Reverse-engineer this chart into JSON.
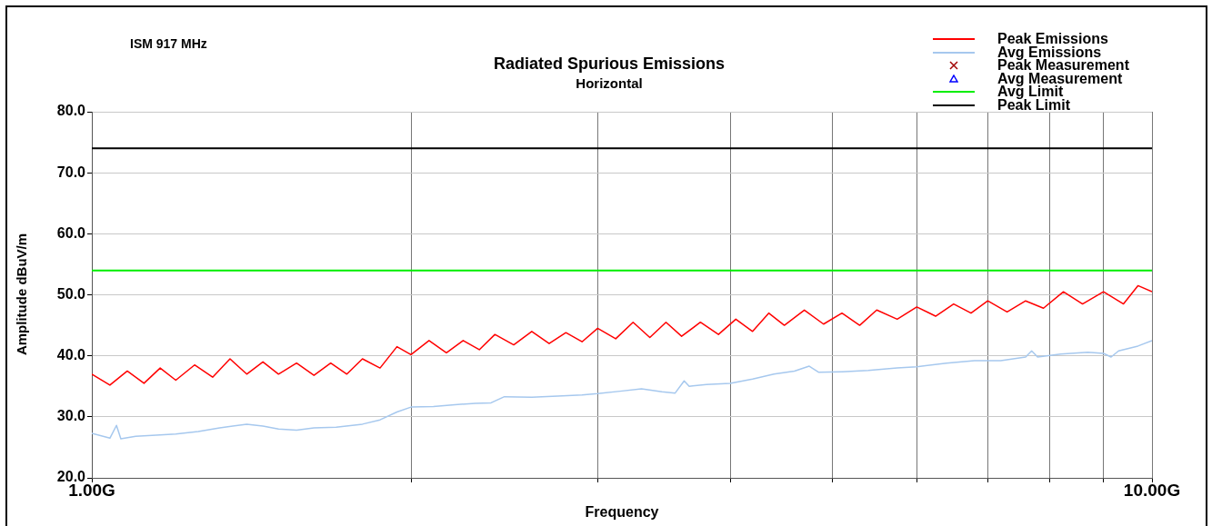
{
  "chart_data": {
    "type": "line",
    "title": "Radiated Spurious Emissions",
    "subtitle": "Horizontal",
    "xlabel": "Frequency",
    "ylabel": "Amplitude dBuV/m",
    "annotations": [
      "ISM 917 MHz"
    ],
    "log": "x",
    "grid": true,
    "legend": "top right",
    "marker": "none",
    "line_style": "solid",
    "xlim": [
      1,
      10
    ],
    "xticks": [
      {
        "value": 1,
        "label": "1.00G"
      },
      {
        "value": 2,
        "label": null
      },
      {
        "value": 3,
        "label": null
      },
      {
        "value": 4,
        "label": null
      },
      {
        "value": 5,
        "label": null
      },
      {
        "value": 6,
        "label": null
      },
      {
        "value": 7,
        "label": null
      },
      {
        "value": 8,
        "label": null
      },
      {
        "value": 9,
        "label": null
      },
      {
        "value": 10,
        "label": "10.00G"
      }
    ],
    "ylim": [
      20,
      80
    ],
    "yticks": [
      {
        "value": 20,
        "label": "20.0"
      },
      {
        "value": 30,
        "label": "30.0"
      },
      {
        "value": 40,
        "label": "40.0"
      },
      {
        "value": 50,
        "label": "50.0"
      },
      {
        "value": 60,
        "label": "60.0"
      },
      {
        "value": 70,
        "label": "70.0"
      },
      {
        "value": 80,
        "label": "80.0"
      }
    ],
    "series": [
      {
        "name": "Peak Emissions",
        "color": "#ff0000",
        "x": [
          1.0,
          1.04,
          1.08,
          1.12,
          1.16,
          1.2,
          1.25,
          1.3,
          1.35,
          1.4,
          1.45,
          1.5,
          1.56,
          1.62,
          1.68,
          1.74,
          1.8,
          1.87,
          1.94,
          2.0,
          2.08,
          2.16,
          2.24,
          2.32,
          2.4,
          2.5,
          2.6,
          2.7,
          2.8,
          2.9,
          3.0,
          3.12,
          3.24,
          3.36,
          3.48,
          3.6,
          3.75,
          3.9,
          4.05,
          4.2,
          4.35,
          4.5,
          4.7,
          4.9,
          5.1,
          5.3,
          5.5,
          5.75,
          6.0,
          6.25,
          6.5,
          6.75,
          7.0,
          7.3,
          7.6,
          7.9,
          8.25,
          8.6,
          9.0,
          9.4,
          9.7,
          10.0
        ],
        "values": [
          37,
          35.2,
          37.5,
          35.5,
          38,
          36,
          38.5,
          36.5,
          39.5,
          37,
          39,
          37,
          38.8,
          36.8,
          38.8,
          37,
          39.5,
          38,
          41.5,
          40.2,
          42.5,
          40.5,
          42.5,
          41,
          43.5,
          41.8,
          44,
          42,
          43.8,
          42.3,
          44.5,
          42.8,
          45.5,
          43,
          45.5,
          43.2,
          45.5,
          43.5,
          46,
          44,
          47,
          45,
          47.5,
          45.2,
          47,
          45,
          47.5,
          46,
          48,
          46.5,
          48.5,
          47,
          49,
          47.2,
          49,
          47.8,
          50.5,
          48.5,
          50.5,
          48.5,
          51.5,
          50.5
        ]
      },
      {
        "name": "Avg Emissions",
        "color": "#a6c8ee",
        "x": [
          1.0,
          1.04,
          1.055,
          1.065,
          1.1,
          1.15,
          1.2,
          1.26,
          1.32,
          1.4,
          1.45,
          1.5,
          1.56,
          1.62,
          1.7,
          1.8,
          1.87,
          1.94,
          2.0,
          2.1,
          2.2,
          2.3,
          2.38,
          2.45,
          2.6,
          2.75,
          2.9,
          3.0,
          3.15,
          3.3,
          3.45,
          3.55,
          3.62,
          3.66,
          3.8,
          4.0,
          4.2,
          4.4,
          4.6,
          4.75,
          4.85,
          5.1,
          5.4,
          5.75,
          6.0,
          6.4,
          6.8,
          7.2,
          7.6,
          7.7,
          7.8,
          8.2,
          8.7,
          9.0,
          9.15,
          9.3,
          9.7,
          10.0
        ],
        "values": [
          27.3,
          26.5,
          28.6,
          26.4,
          26.8,
          27,
          27.2,
          27.6,
          28.2,
          28.8,
          28.5,
          28,
          27.8,
          28.2,
          28.3,
          28.8,
          29.5,
          30.8,
          31.6,
          31.7,
          32,
          32.2,
          32.3,
          33.3,
          33.2,
          33.4,
          33.6,
          33.8,
          34.2,
          34.6,
          34.1,
          33.9,
          35.9,
          35,
          35.3,
          35.5,
          36.2,
          37,
          37.5,
          38.3,
          37.3,
          37.4,
          37.6,
          38,
          38.2,
          38.8,
          39.2,
          39.2,
          39.8,
          40.8,
          39.8,
          40.3,
          40.6,
          40.4,
          39.8,
          40.8,
          41.6,
          42.5
        ]
      },
      {
        "name": "Peak Measurement",
        "type": "scatter",
        "marker": "cross"
      },
      {
        "name": "Avg Measurement",
        "type": "scatter",
        "marker": "triangle"
      }
    ],
    "ref_lines": [
      {
        "axis": "y",
        "value": 54,
        "label": "Avg Limit",
        "color": "#00ee00",
        "line_style": "solid"
      },
      {
        "axis": "y",
        "value": 74,
        "label": "Peak Limit",
        "color": "#000000",
        "line_style": "solid"
      }
    ]
  }
}
